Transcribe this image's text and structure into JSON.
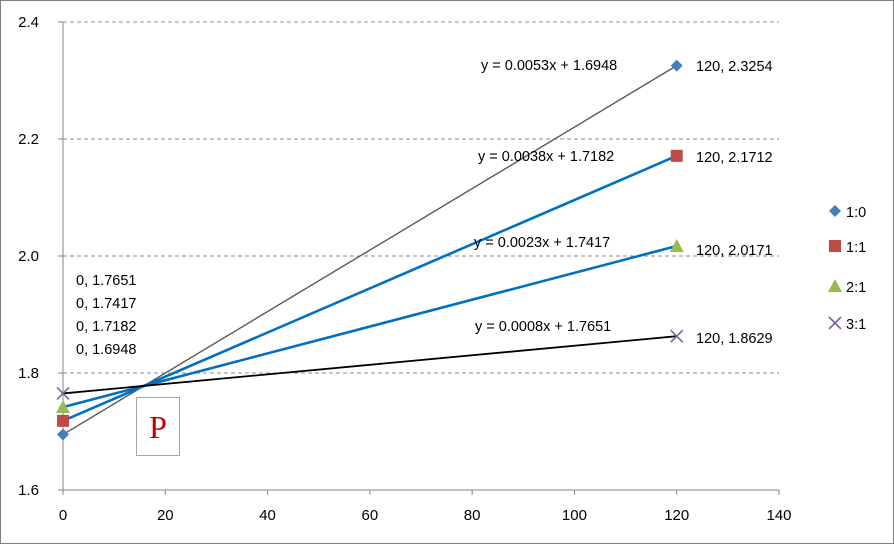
{
  "chart_data": {
    "type": "scatter",
    "title": "",
    "xlabel": "",
    "ylabel": "",
    "xlim": [
      0,
      140
    ],
    "ylim": [
      1.6,
      2.4
    ],
    "x_ticks": [
      "0",
      "20",
      "40",
      "60",
      "80",
      "100",
      "120",
      "140"
    ],
    "y_ticks": [
      "1.6",
      "1.8",
      "2.0",
      "2.2",
      "2.4"
    ],
    "grid": "horizontal-dashed",
    "legend_position": "right",
    "series": [
      {
        "name": "1:0",
        "marker": "diamond",
        "color": "#4a7ebb",
        "line_color": "#595959",
        "x": [
          0,
          120
        ],
        "y": [
          1.6948,
          2.3254
        ],
        "trend": {
          "slope": 0.0053,
          "intercept": 1.6948
        },
        "equation": "y = 0.0053x + 1.6948",
        "end_label": "120, 2.3254",
        "start_label": "0, 1.6948"
      },
      {
        "name": "1:1",
        "marker": "square",
        "color": "#be4b48",
        "line_color": "#0070c0",
        "x": [
          0,
          120
        ],
        "y": [
          1.7182,
          2.1712
        ],
        "trend": {
          "slope": 0.0038,
          "intercept": 1.7182
        },
        "equation": "y = 0.0038x + 1.7182",
        "end_label": "120, 2.1712",
        "start_label": "0, 1.7182"
      },
      {
        "name": "2:1",
        "marker": "triangle",
        "color": "#98b954",
        "line_color": "#0070c0",
        "x": [
          0,
          120
        ],
        "y": [
          1.7417,
          2.0171
        ],
        "trend": {
          "slope": 0.0023,
          "intercept": 1.7417
        },
        "equation": "y = 0.0023x + 1.7417",
        "end_label": "120, 2.0171",
        "start_label": "0, 1.7417"
      },
      {
        "name": "3:1",
        "marker": "x",
        "color": "#7d60a0",
        "line_color": "#000000",
        "x": [
          0,
          120
        ],
        "y": [
          1.7651,
          1.8629
        ],
        "trend": {
          "slope": 0.0008,
          "intercept": 1.7651
        },
        "equation": "y = 0.0008x + 1.7651",
        "end_label": "120, 1.8629",
        "start_label": "0, 1.7651"
      }
    ],
    "start_labels_order": [
      "0, 1.7651",
      "0, 1.7417",
      "0, 1.7182",
      "0, 1.6948"
    ],
    "annotation": "P"
  }
}
